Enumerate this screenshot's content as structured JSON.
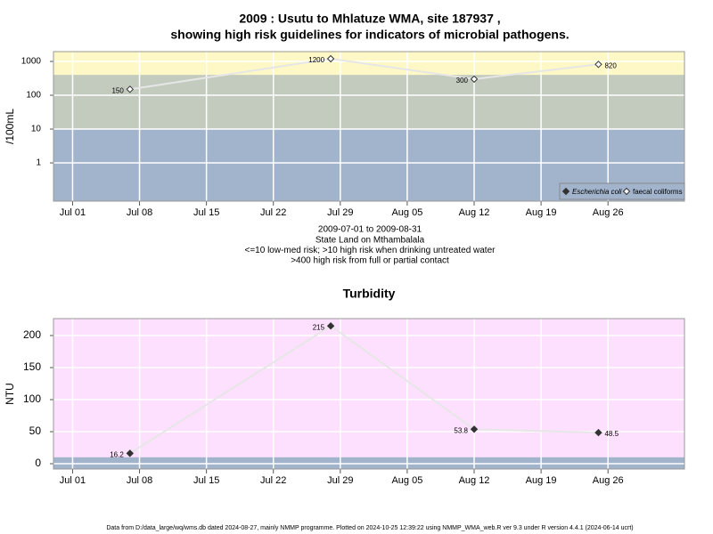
{
  "chart_data": [
    {
      "type": "line",
      "title": "2009 : Usutu to Mhlatuze WMA, site 187937 ,",
      "subtitle": "showing high risk guidelines for indicators of microbial pathogens.",
      "y_label": "/100mL",
      "log_scale": true,
      "grid": true,
      "legend": "bottom-right",
      "background": "#fdf8c6",
      "bands": [
        {
          "to": 10,
          "color": "#a2b4cc"
        },
        {
          "to": 400,
          "color": "#c3cbbe"
        }
      ],
      "xlim": [
        "Jun 29",
        "Sep 03"
      ],
      "xticks": [
        "Jul 01",
        "Jul 08",
        "Jul 15",
        "Jul 22",
        "Jul 29",
        "Aug 05",
        "Aug 12",
        "Aug 19",
        "Aug 26"
      ],
      "ylim": [
        0.074,
        1950
      ],
      "yticks": [
        1,
        10,
        100,
        1000
      ],
      "x": [
        "Jul 07",
        "Jul 28",
        "Aug 12",
        "Aug 25"
      ],
      "series": [
        {
          "name": "Escherichia coli",
          "color": "#333333",
          "marker": "filled",
          "values": [
            null,
            null,
            null,
            null
          ]
        },
        {
          "name": "faecal coliforms",
          "color": "#333333",
          "marker": "open",
          "values": [
            150,
            1200,
            300,
            820
          ]
        }
      ],
      "notes": [
        "2009-07-01 to 2009-08-31",
        "State Land on Mthambalala",
        "<=10 low-med risk; >10 high risk when drinking untreated water",
        ">400 high risk from full or partial contact"
      ]
    },
    {
      "type": "line",
      "title": "Turbidity",
      "y_label": "NTU",
      "grid": true,
      "background": "#fde0fd",
      "bands": [
        {
          "to": 10,
          "color": "#a2b4cc"
        }
      ],
      "xlim": [
        "Jun 29",
        "Sep 03"
      ],
      "xticks": [
        "Jul 01",
        "Jul 08",
        "Jul 15",
        "Jul 22",
        "Jul 29",
        "Aug 05",
        "Aug 12",
        "Aug 19",
        "Aug 26"
      ],
      "ylim": [
        -8.3,
        226.4
      ],
      "yticks": [
        0,
        50,
        100,
        150,
        200
      ],
      "x": [
        "Jul 07",
        "Jul 28",
        "Aug 12",
        "Aug 25"
      ],
      "series": [
        {
          "name": "Turbidity",
          "color": "#333333",
          "marker": "filled",
          "values": [
            16.2,
            215,
            53.8,
            48.5
          ]
        }
      ],
      "footer": "Data from D:/data_large/wq/wms.db dated 2024-08-27, mainly NMMP programme. Plotted on 2024-10-25 12:39:22 using NMMP_WMA_web.R ver 9.3 under R version 4.4.1 (2024-06-14 ucrt)"
    }
  ]
}
